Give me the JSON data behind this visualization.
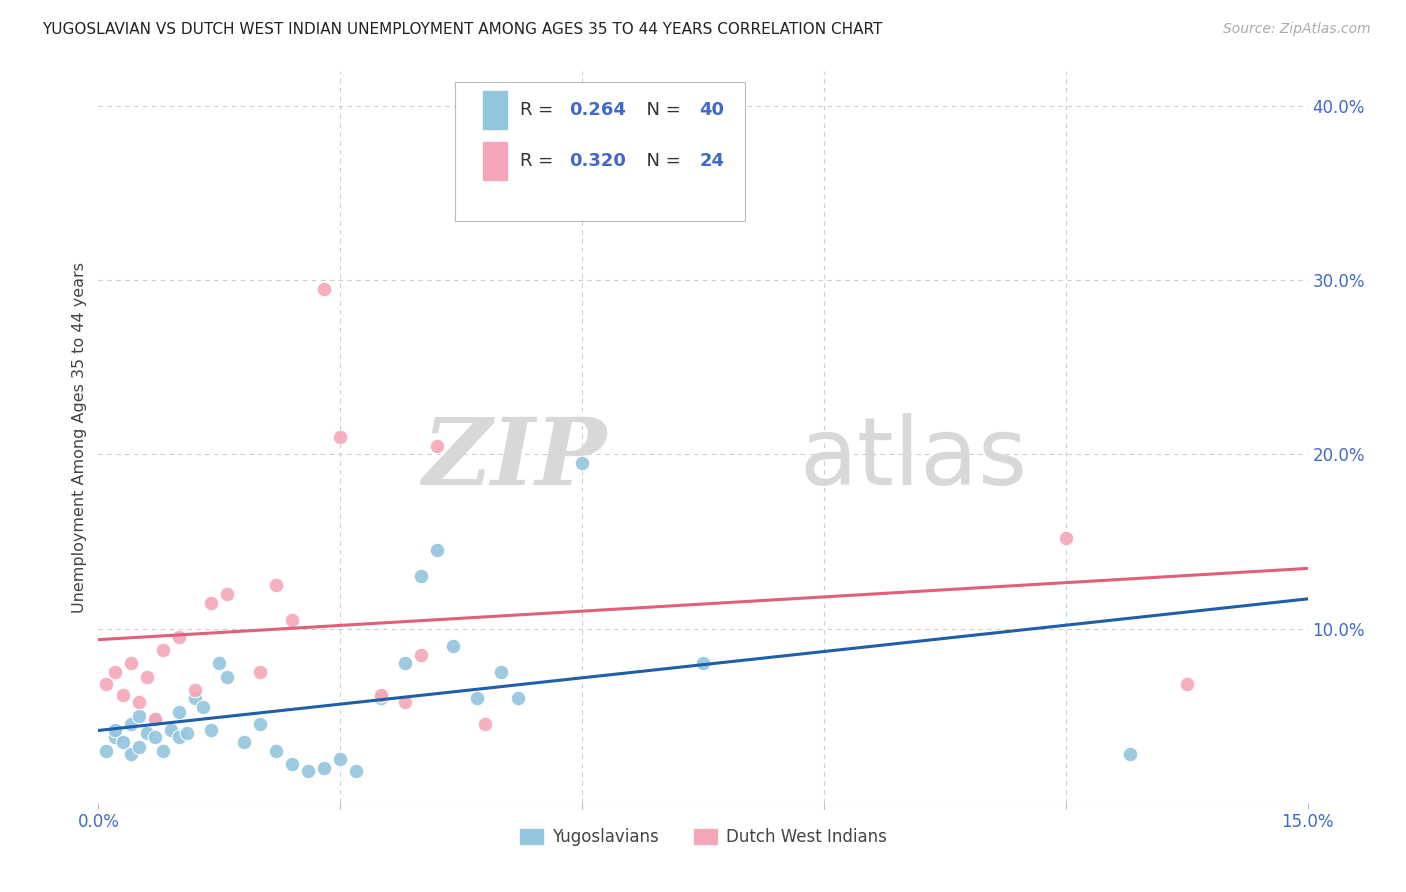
{
  "title": "YUGOSLAVIAN VS DUTCH WEST INDIAN UNEMPLOYMENT AMONG AGES 35 TO 44 YEARS CORRELATION CHART",
  "source": "Source: ZipAtlas.com",
  "ylabel": "Unemployment Among Ages 35 to 44 years",
  "xlim": [
    0.0,
    0.15
  ],
  "ylim": [
    0.0,
    0.42
  ],
  "y_ticks_right": [
    0.0,
    0.1,
    0.2,
    0.3,
    0.4
  ],
  "y_tick_labels_right": [
    "",
    "10.0%",
    "20.0%",
    "30.0%",
    "40.0%"
  ],
  "legend_label1": "Yugoslavians",
  "legend_label2": "Dutch West Indians",
  "R1": "0.264",
  "N1": "40",
  "R2": "0.320",
  "N2": "24",
  "color_blue": "#92c5de",
  "color_pink": "#f4a6b8",
  "line_color_blue": "#1e5fa8",
  "line_color_pink": "#e0607a",
  "background_color": "#ffffff",
  "grid_color": "#cccccc",
  "text_color_blue": "#4169c8",
  "watermark_zip": "ZIP",
  "watermark_atlas": "atlas",
  "yugoslavian_x": [
    0.001,
    0.002,
    0.002,
    0.003,
    0.004,
    0.004,
    0.005,
    0.005,
    0.006,
    0.007,
    0.007,
    0.008,
    0.009,
    0.01,
    0.01,
    0.011,
    0.012,
    0.013,
    0.014,
    0.015,
    0.016,
    0.018,
    0.02,
    0.022,
    0.024,
    0.026,
    0.028,
    0.03,
    0.032,
    0.035,
    0.038,
    0.04,
    0.042,
    0.044,
    0.047,
    0.05,
    0.052,
    0.06,
    0.075,
    0.128
  ],
  "yugoslavian_y": [
    0.03,
    0.038,
    0.042,
    0.035,
    0.028,
    0.045,
    0.032,
    0.05,
    0.04,
    0.048,
    0.038,
    0.03,
    0.042,
    0.038,
    0.052,
    0.04,
    0.06,
    0.055,
    0.042,
    0.08,
    0.072,
    0.035,
    0.045,
    0.03,
    0.022,
    0.018,
    0.02,
    0.025,
    0.018,
    0.06,
    0.08,
    0.13,
    0.145,
    0.09,
    0.06,
    0.075,
    0.06,
    0.195,
    0.08,
    0.028
  ],
  "dutch_x": [
    0.001,
    0.002,
    0.003,
    0.004,
    0.005,
    0.006,
    0.007,
    0.008,
    0.01,
    0.012,
    0.014,
    0.016,
    0.02,
    0.022,
    0.024,
    0.028,
    0.03,
    0.035,
    0.038,
    0.04,
    0.042,
    0.048,
    0.12,
    0.135
  ],
  "dutch_y": [
    0.068,
    0.075,
    0.062,
    0.08,
    0.058,
    0.072,
    0.048,
    0.088,
    0.095,
    0.065,
    0.115,
    0.12,
    0.075,
    0.125,
    0.105,
    0.295,
    0.21,
    0.062,
    0.058,
    0.085,
    0.205,
    0.045,
    0.152,
    0.068
  ]
}
